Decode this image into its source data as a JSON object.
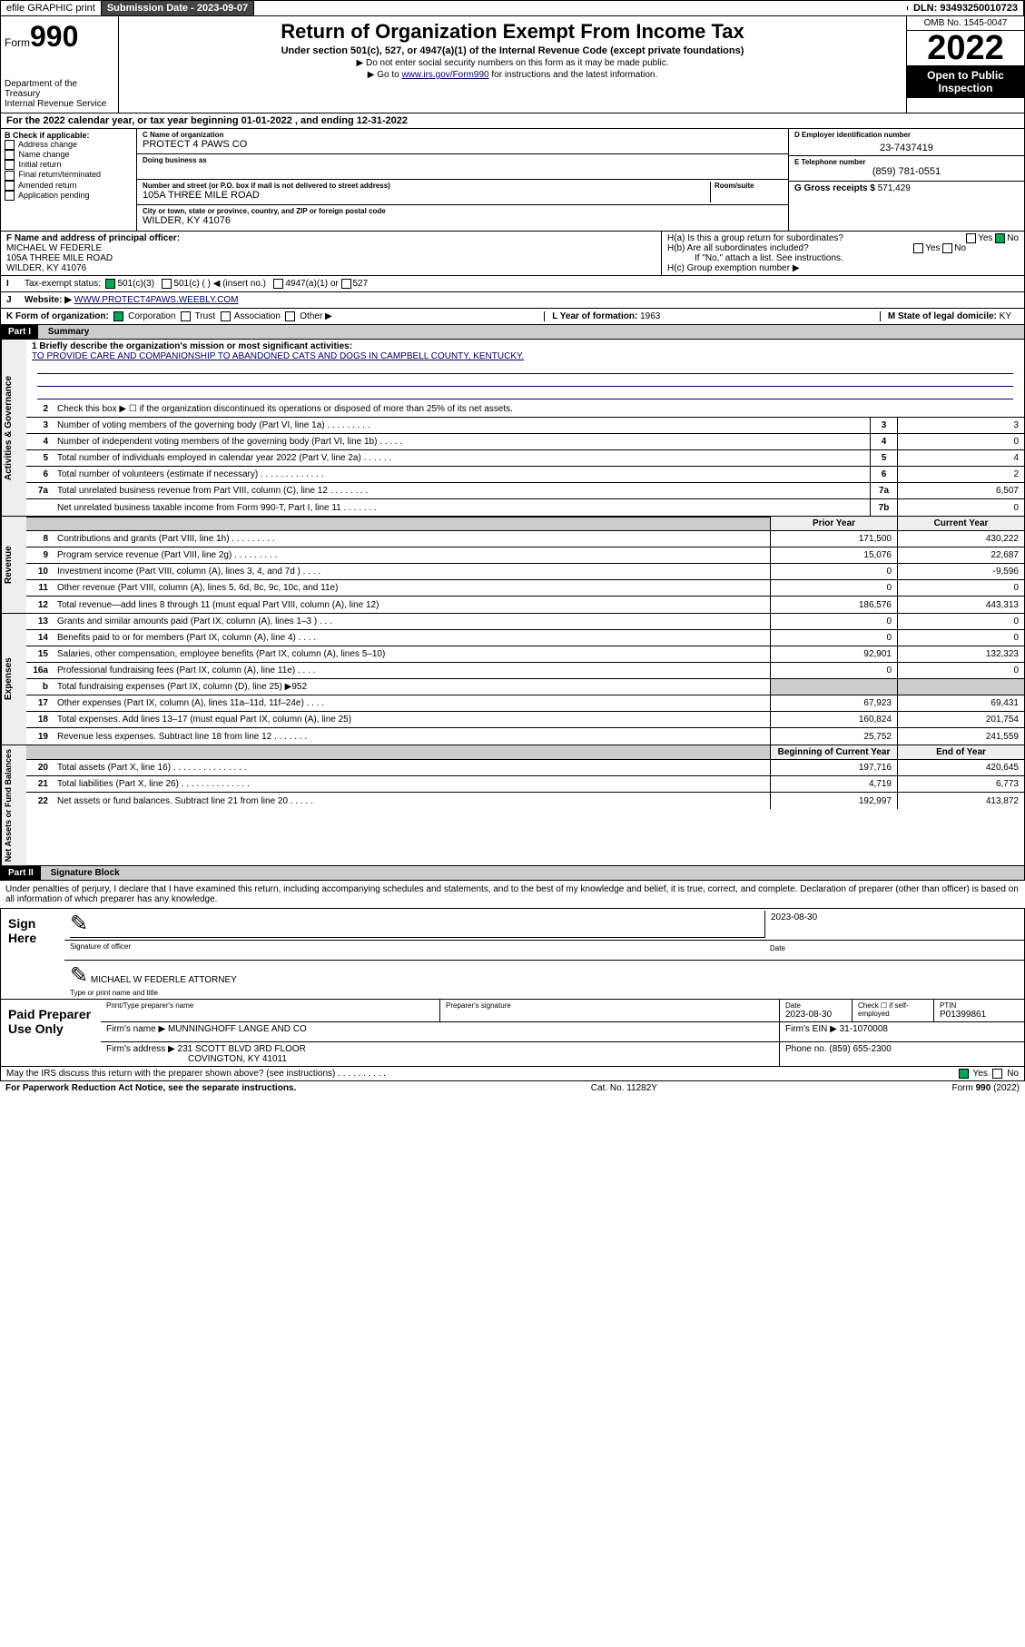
{
  "topbar": {
    "efile": "efile GRAPHIC print",
    "sub_label": "Submission Date - ",
    "sub_date": "2023-09-07",
    "dln_label": "DLN: ",
    "dln": "93493250010723"
  },
  "header": {
    "form_word": "Form",
    "form_num": "990",
    "dept": "Department of the Treasury",
    "irs": "Internal Revenue Service",
    "title": "Return of Organization Exempt From Income Tax",
    "subtitle": "Under section 501(c), 527, or 4947(a)(1) of the Internal Revenue Code (except private foundations)",
    "note1": "▶ Do not enter social security numbers on this form as it may be made public.",
    "note2_pre": "▶ Go to ",
    "note2_link": "www.irs.gov/Form990",
    "note2_post": " for instructions and the latest information.",
    "omb": "OMB No. 1545-0047",
    "year": "2022",
    "opi": "Open to Public Inspection"
  },
  "lineA": "For the 2022 calendar year, or tax year beginning 01-01-2022    , and ending 12-31-2022",
  "boxB": {
    "label": "B Check if applicable:",
    "items": [
      "Address change",
      "Name change",
      "Initial return",
      "Final return/terminated",
      "Amended return",
      "Application pending"
    ]
  },
  "boxC": {
    "label_name": "C Name of organization",
    "name": "PROTECT 4 PAWS CO",
    "dba_label": "Doing business as",
    "dba": "",
    "addr_label": "Number and street (or P.O. box if mail is not delivered to street address)",
    "room_label": "Room/suite",
    "addr": "105A THREE MILE ROAD",
    "city_label": "City or town, state or province, country, and ZIP or foreign postal code",
    "city": "WILDER, KY  41076"
  },
  "boxD": {
    "label": "D Employer identification number",
    "val": "23-7437419"
  },
  "boxE": {
    "label": "E Telephone number",
    "val": "(859) 781-0551"
  },
  "boxG": {
    "label": "G Gross receipts $ ",
    "val": "571,429"
  },
  "boxF": {
    "label": "F  Name and address of principal officer:",
    "name": "MICHAEL W FEDERLE",
    "addr1": "105A THREE MILE ROAD",
    "addr2": "WILDER, KY  41076"
  },
  "boxH": {
    "a_label": "H(a)  Is this a group return for subordinates?",
    "a_yes": "Yes",
    "a_no": "No",
    "b_label": "H(b)  Are all subordinates included?",
    "b_yes": "Yes",
    "b_no": "No",
    "b_note": "If \"No,\" attach a list. See instructions.",
    "c_label": "H(c)  Group exemption number ▶"
  },
  "lineI": {
    "label": "Tax-exempt status:",
    "opt1": "501(c)(3)",
    "opt2": "501(c) (  ) ◀ (insert no.)",
    "opt3": "4947(a)(1) or",
    "opt4": "527"
  },
  "lineJ": {
    "label": "Website: ▶",
    "val": "WWW.PROTECT4PAWS.WEEBLY.COM"
  },
  "lineK": {
    "label": "K Form of organization:",
    "corp": "Corporation",
    "trust": "Trust",
    "assoc": "Association",
    "other": "Other ▶",
    "L_label": "L Year of formation: ",
    "L_val": "1963",
    "M_label": "M State of legal domicile: ",
    "M_val": "KY"
  },
  "part1": {
    "hdr": "Part I",
    "title": "Summary"
  },
  "vtabs": {
    "gov": "Activities & Governance",
    "rev": "Revenue",
    "exp": "Expenses",
    "net": "Net Assets or Fund Balances"
  },
  "mission": {
    "label": "1  Briefly describe the organization's mission or most significant activities:",
    "text": "TO PROVIDE CARE AND COMPANIONSHIP TO ABANDONED CATS AND DOGS IN CAMPBELL COUNTY, KENTUCKY."
  },
  "lines_gov": [
    {
      "n": "2",
      "t": "Check this box ▶ ☐  if the organization discontinued its operations or disposed of more than 25% of its net assets."
    },
    {
      "n": "3",
      "t": "Number of voting members of the governing body (Part VI, line 1a)   .    .    .    .    .    .    .    .    .",
      "box": "3",
      "v": "3"
    },
    {
      "n": "4",
      "t": "Number of independent voting members of the governing body (Part VI, line 1b)   .    .    .    .    .",
      "box": "4",
      "v": "0"
    },
    {
      "n": "5",
      "t": "Total number of individuals employed in calendar year 2022 (Part V, line 2a)   .    .    .    .    .    .",
      "box": "5",
      "v": "4"
    },
    {
      "n": "6",
      "t": "Total number of volunteers (estimate if necessary)   .    .    .    .    .    .    .    .    .    .    .    .    .",
      "box": "6",
      "v": "2"
    },
    {
      "n": "7a",
      "t": "Total unrelated business revenue from Part VIII, column (C), line 12   .    .    .    .    .    .    .    .",
      "box": "7a",
      "v": "6,507"
    },
    {
      "n": "",
      "t": "Net unrelated business taxable income from Form 990-T, Part I, line 11   .    .    .    .    .    .    .",
      "box": "7b",
      "v": "0"
    }
  ],
  "col_hdr": {
    "prior": "Prior Year",
    "curr": "Current Year"
  },
  "lines_rev": [
    {
      "n": "8",
      "t": "Contributions and grants (Part VIII, line 1h)   .    .    .    .    .    .    .    .    .",
      "p": "171,500",
      "c": "430,222"
    },
    {
      "n": "9",
      "t": "Program service revenue (Part VIII, line 2g)   .    .    .    .    .    .    .    .    .",
      "p": "15,076",
      "c": "22,687"
    },
    {
      "n": "10",
      "t": "Investment income (Part VIII, column (A), lines 3, 4, and 7d )   .    .    .    .",
      "p": "0",
      "c": "-9,596"
    },
    {
      "n": "11",
      "t": "Other revenue (Part VIII, column (A), lines 5, 6d, 8c, 9c, 10c, and 11e)",
      "p": "0",
      "c": "0"
    },
    {
      "n": "12",
      "t": "Total revenue—add lines 8 through 11 (must equal Part VIII, column (A), line 12)",
      "p": "186,576",
      "c": "443,313"
    }
  ],
  "lines_exp": [
    {
      "n": "13",
      "t": "Grants and similar amounts paid (Part IX, column (A), lines 1–3 )   .    .    .",
      "p": "0",
      "c": "0"
    },
    {
      "n": "14",
      "t": "Benefits paid to or for members (Part IX, column (A), line 4)   .    .    .    .",
      "p": "0",
      "c": "0"
    },
    {
      "n": "15",
      "t": "Salaries, other compensation, employee benefits (Part IX, column (A), lines 5–10)",
      "p": "92,901",
      "c": "132,323"
    },
    {
      "n": "16a",
      "t": "Professional fundraising fees (Part IX, column (A), line 11e)   .    .    .    .",
      "p": "0",
      "c": "0"
    },
    {
      "n": "b",
      "t": "Total fundraising expenses (Part IX, column (D), line 25) ▶952",
      "p": "",
      "c": "",
      "grey": true
    },
    {
      "n": "17",
      "t": "Other expenses (Part IX, column (A), lines 11a–11d, 11f–24e)   .    .    .    .",
      "p": "67,923",
      "c": "69,431"
    },
    {
      "n": "18",
      "t": "Total expenses. Add lines 13–17 (must equal Part IX, column (A), line 25)",
      "p": "160,824",
      "c": "201,754"
    },
    {
      "n": "19",
      "t": "Revenue less expenses. Subtract line 18 from line 12   .    .    .    .    .    .    .",
      "p": "25,752",
      "c": "241,559"
    }
  ],
  "net_hdr": {
    "beg": "Beginning of Current Year",
    "end": "End of Year"
  },
  "lines_net": [
    {
      "n": "20",
      "t": "Total assets (Part X, line 16)   .    .    .    .    .    .    .    .    .    .    .    .    .    .    .",
      "p": "197,716",
      "c": "420,645"
    },
    {
      "n": "21",
      "t": "Total liabilities (Part X, line 26)   .    .    .    .    .    .    .    .    .    .    .    .    .    .",
      "p": "4,719",
      "c": "6,773"
    },
    {
      "n": "22",
      "t": "Net assets or fund balances. Subtract line 21 from line 20   .    .    .    .    .",
      "p": "192,997",
      "c": "413,872"
    }
  ],
  "part2": {
    "hdr": "Part II",
    "title": "Signature Block"
  },
  "sig_intro": "Under penalties of perjury, I declare that I have examined this return, including accompanying schedules and statements, and to the best of my knowledge and belief, it is true, correct, and complete. Declaration of preparer (other than officer) is based on all information of which preparer has any knowledge.",
  "sign": {
    "here": "Sign Here",
    "sig_label": "Signature of officer",
    "date_label": "Date",
    "date": "2023-08-30",
    "name": "MICHAEL W FEDERLE  ATTORNEY",
    "name_label": "Type or print name and title"
  },
  "prep": {
    "title": "Paid Preparer Use Only",
    "h1": "Print/Type preparer's name",
    "h2": "Preparer's signature",
    "h3": "Date",
    "h3v": "2023-08-30",
    "h4": "Check ☐ if self-employed",
    "h5": "PTIN",
    "h5v": "P01399861",
    "firm_label": "Firm's name     ▶",
    "firm": "MUNNINGHOFF LANGE AND CO",
    "ein_label": "Firm's EIN ▶ ",
    "ein": "31-1070008",
    "addr_label": "Firm's address ▶",
    "addr1": "231 SCOTT BLVD 3RD FLOOR",
    "addr2": "COVINGTON, KY  41011",
    "phone_label": "Phone no. ",
    "phone": "(859) 655-2300"
  },
  "discuss": {
    "q": "May the IRS discuss this return with the preparer shown above? (see instructions)   .    .    .    .    .    .    .    .    .    .",
    "yes": "Yes",
    "no": "No"
  },
  "footer": {
    "left": "For Paperwork Reduction Act Notice, see the separate instructions.",
    "mid": "Cat. No. 11282Y",
    "right": "Form 990 (2022)"
  }
}
